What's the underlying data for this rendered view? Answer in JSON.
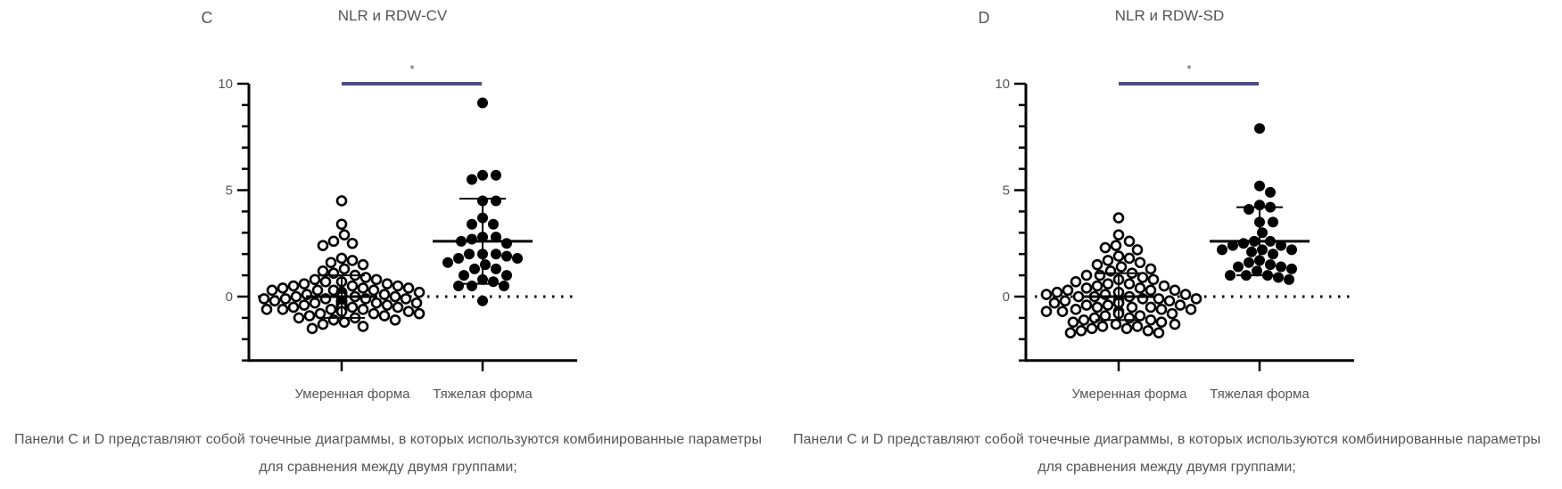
{
  "chart_data": [
    {
      "type": "scatter",
      "panel_label": "C",
      "title": "NLR и RDW-CV",
      "categories": [
        "Умеренная форма",
        "Тяжелая форма"
      ],
      "ylim": [
        -3,
        10
      ],
      "yticks": [
        "10",
        "5",
        "0"
      ],
      "grid": false,
      "reference_line": 0,
      "significance": {
        "label": "*",
        "color": "#4b4b8c"
      },
      "series": [
        {
          "marker": "open-circle",
          "values": [
            4.5,
            3.4,
            2.9,
            2.6,
            2.5,
            2.4,
            1.8,
            1.7,
            1.6,
            1.5,
            1.3,
            1.2,
            1.1,
            1.0,
            0.9,
            0.8,
            0.8,
            0.7,
            0.7,
            0.6,
            0.6,
            0.5,
            0.5,
            0.5,
            0.4,
            0.4,
            0.4,
            0.3,
            0.3,
            0.3,
            0.3,
            0.2,
            0.2,
            0.2,
            0.2,
            0.1,
            0.1,
            0.1,
            0.1,
            0.1,
            0.0,
            0.0,
            0.0,
            0.0,
            0.0,
            0.0,
            -0.1,
            -0.1,
            -0.1,
            -0.1,
            -0.1,
            -0.2,
            -0.2,
            -0.2,
            -0.2,
            -0.2,
            -0.3,
            -0.3,
            -0.3,
            -0.3,
            -0.3,
            -0.4,
            -0.4,
            -0.4,
            -0.4,
            -0.4,
            -0.5,
            -0.5,
            -0.5,
            -0.5,
            -0.6,
            -0.6,
            -0.6,
            -0.6,
            -0.7,
            -0.7,
            -0.7,
            -0.8,
            -0.8,
            -0.8,
            -0.9,
            -0.9,
            -1.0,
            -1.0,
            -1.1,
            -1.1,
            -1.2,
            -1.3,
            -1.4,
            -1.5
          ],
          "mean": 0.0,
          "sd_low": -1.0,
          "sd_high": 1.0
        },
        {
          "marker": "filled-circle",
          "values": [
            9.1,
            5.7,
            5.7,
            5.5,
            4.5,
            4.5,
            3.7,
            3.4,
            3.4,
            2.8,
            2.8,
            2.7,
            2.6,
            2.5,
            2.0,
            2.0,
            2.0,
            1.9,
            1.8,
            1.8,
            1.6,
            1.5,
            1.3,
            1.3,
            1.0,
            1.0,
            0.8,
            0.7,
            0.5,
            0.5,
            0.5,
            -0.2
          ],
          "mean": 2.6,
          "sd_low": 0.6,
          "sd_high": 4.6
        }
      ],
      "caption": "Панели C и D представляют собой точечные диаграммы, в которых используются комбинированные параметры для сравнения между двумя группами;"
    },
    {
      "type": "scatter",
      "panel_label": "D",
      "title": "NLR и RDW-SD",
      "categories": [
        "Умеренная форма",
        "Тяжелая форма"
      ],
      "ylim": [
        -3,
        10
      ],
      "yticks": [
        "10",
        "5",
        "0"
      ],
      "grid": false,
      "reference_line": 0,
      "significance": {
        "label": "*",
        "color": "#4b4b8c"
      },
      "series": [
        {
          "marker": "open-circle",
          "values": [
            3.7,
            2.9,
            2.6,
            2.4,
            2.3,
            2.2,
            1.9,
            1.8,
            1.7,
            1.6,
            1.5,
            1.4,
            1.3,
            1.2,
            1.1,
            1.0,
            1.0,
            0.9,
            0.8,
            0.8,
            0.7,
            0.6,
            0.6,
            0.5,
            0.5,
            0.4,
            0.4,
            0.3,
            0.3,
            0.3,
            0.2,
            0.2,
            0.1,
            0.1,
            0.1,
            0.0,
            0.0,
            0.0,
            -0.1,
            -0.1,
            -0.1,
            -0.2,
            -0.2,
            -0.2,
            -0.3,
            -0.3,
            -0.3,
            -0.4,
            -0.4,
            -0.4,
            -0.5,
            -0.5,
            -0.5,
            -0.6,
            -0.6,
            -0.6,
            -0.7,
            -0.7,
            -0.7,
            -0.8,
            -0.8,
            -0.9,
            -0.9,
            -1.0,
            -1.0,
            -1.1,
            -1.1,
            -1.2,
            -1.2,
            -1.3,
            -1.3,
            -1.4,
            -1.4,
            -1.5,
            -1.5,
            -1.6,
            -1.6,
            -1.7,
            -1.7
          ],
          "mean": 0.0,
          "sd_low": -1.1,
          "sd_high": 1.1
        },
        {
          "marker": "filled-circle",
          "values": [
            7.9,
            5.2,
            4.9,
            4.3,
            4.2,
            4.1,
            3.5,
            3.5,
            3.0,
            2.6,
            2.6,
            2.5,
            2.4,
            2.4,
            2.2,
            2.2,
            2.2,
            2.1,
            2.0,
            1.7,
            1.6,
            1.5,
            1.4,
            1.4,
            1.3,
            1.2,
            1.0,
            1.0,
            1.0,
            0.9,
            0.8
          ],
          "mean": 2.6,
          "sd_low": 1.0,
          "sd_high": 4.2
        }
      ],
      "caption": "Панели C и D представляют собой точечные диаграммы, в которых используются комбинированные параметры для сравнения между двумя группами;"
    }
  ]
}
